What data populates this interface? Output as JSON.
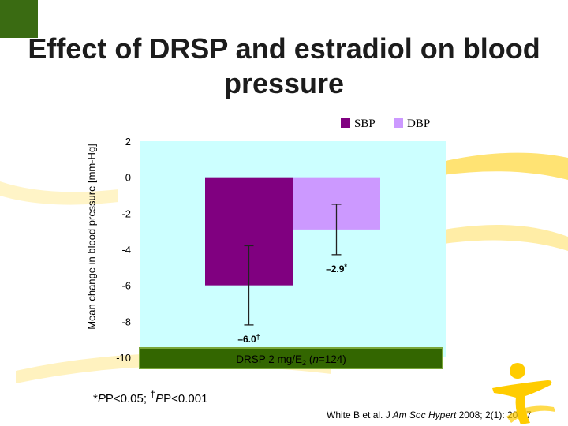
{
  "slide": {
    "title": "Effect of DRSP and estradiol on blood pressure",
    "footnote_sig1": "P<0.05; ",
    "footnote_sig2": "P<0.001",
    "citation_prefix": "White B et al. ",
    "citation_journal": "J Am Soc Hypert",
    "citation_suffix": " 2008; 2(1): 20-27"
  },
  "colors": {
    "sbp": "#800080",
    "dbp": "#cc99ff",
    "plot_background": "#ccffff",
    "group_band": "#336600",
    "accent_yellow": "#ffcc00",
    "corner_green": "#3a6b12"
  },
  "chart_data": {
    "type": "bar",
    "title": "",
    "ylabel": "Mean change in blood pressure [mm-Hg]",
    "xlabel": "",
    "categories": [
      "DRSP 2 mg/E2 (n=124)"
    ],
    "group_label": {
      "prefix": "DRSP 2 mg/E",
      "subscript": "2",
      "mid": " (",
      "n": "n",
      "suffix": "=124)"
    },
    "series": [
      {
        "name": "SBP",
        "values": [
          -6.0
        ],
        "error_low": [
          -8.2
        ],
        "error_high": [
          -3.8
        ],
        "label": "–6.0",
        "label_mark": "†"
      },
      {
        "name": "DBP",
        "values": [
          -2.9
        ],
        "error_low": [
          -4.3
        ],
        "error_high": [
          -1.5
        ],
        "label": "–2.9",
        "label_mark": "*"
      }
    ],
    "ylim": [
      -10,
      2
    ],
    "yticks": [
      2,
      0,
      -2,
      -4,
      -6,
      -8,
      -10
    ],
    "legend_position": "top-right",
    "grid": false
  }
}
